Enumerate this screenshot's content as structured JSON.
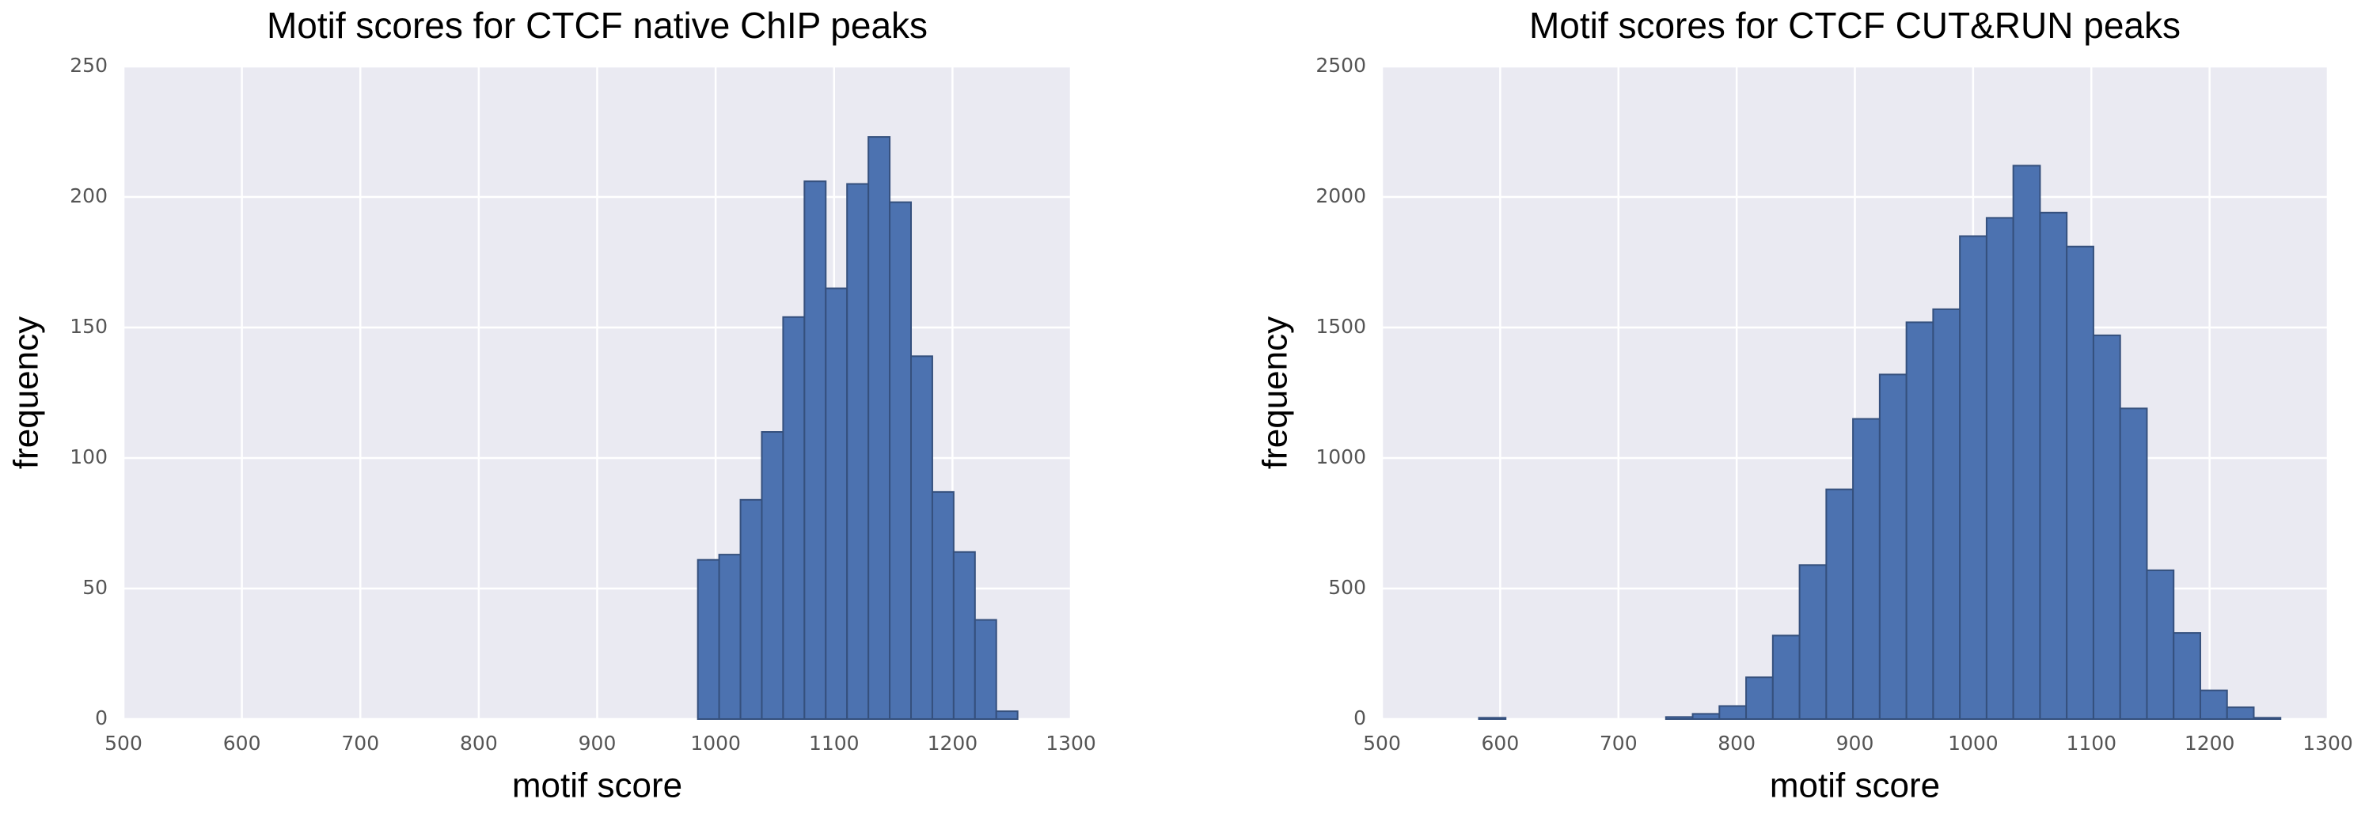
{
  "chart_data": [
    {
      "type": "histogram",
      "title": "Motif scores for CTCF native ChIP peaks",
      "xlabel": "motif score",
      "ylabel": "frequency",
      "bins": [
        985,
        1003,
        1021,
        1039,
        1057,
        1075,
        1093,
        1111,
        1129,
        1147,
        1165,
        1183,
        1201,
        1219,
        1237,
        1255
      ],
      "counts": [
        61,
        63,
        84,
        110,
        154,
        206,
        165,
        205,
        223,
        198,
        139,
        87,
        64,
        38,
        3
      ],
      "xlim": [
        500,
        1300
      ],
      "xticks": [
        500,
        600,
        700,
        800,
        900,
        1000,
        1100,
        1200,
        1300
      ],
      "ylim": [
        0,
        250
      ],
      "yticks": [
        0,
        50,
        100,
        150,
        200,
        250
      ],
      "color": "#4c72b0",
      "grid": true
    },
    {
      "type": "histogram",
      "title": "Motif scores for CTCF CUT&RUN peaks",
      "xlabel": "motif score",
      "ylabel": "frequency",
      "bins": [
        582,
        604.6,
        627.2,
        649.8,
        672.4,
        695,
        717.6,
        740.2,
        762.8,
        785.4,
        808,
        830.6,
        853.2,
        875.8,
        898.4,
        921,
        943.6,
        966.2,
        988.8,
        1011.4,
        1034,
        1056.6,
        1079.2,
        1101.8,
        1124.4,
        1147,
        1169.6,
        1192.2,
        1214.8,
        1237.4,
        1260
      ],
      "counts": [
        5,
        0,
        0,
        0,
        0,
        0,
        0,
        8,
        20,
        50,
        160,
        320,
        590,
        880,
        1150,
        1320,
        1520,
        1570,
        1850,
        1920,
        2120,
        1940,
        1810,
        1470,
        1190,
        570,
        330,
        110,
        45,
        5
      ],
      "xlim": [
        500,
        1300
      ],
      "xticks": [
        500,
        600,
        700,
        800,
        900,
        1000,
        1100,
        1200,
        1300
      ],
      "ylim": [
        0,
        2500
      ],
      "yticks": [
        0,
        500,
        1000,
        1500,
        2000,
        2500
      ],
      "color": "#4c72b0",
      "grid": true
    }
  ]
}
